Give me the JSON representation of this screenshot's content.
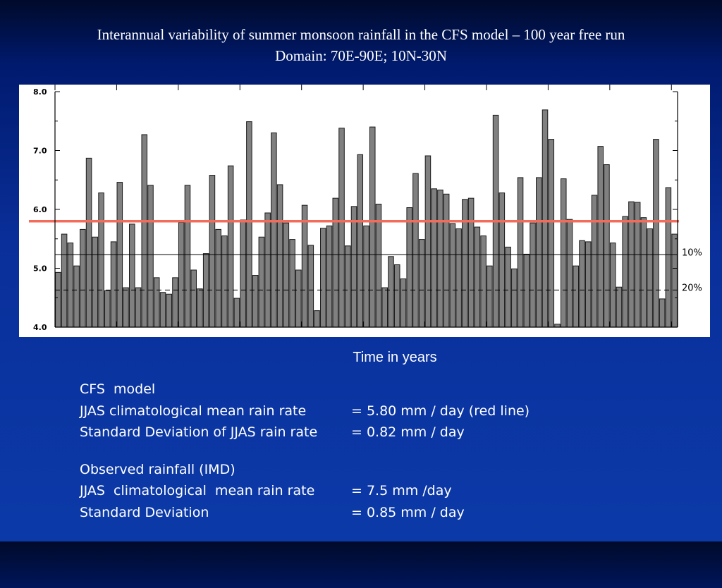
{
  "slide": {
    "title_line1": "Interannual variability of summer monsoon rainfall in the CFS model – 100 year free run",
    "title_line2": "Domain:  70E-90E;  10N-30N",
    "xlabel": "Time in years"
  },
  "notes": {
    "cfs_heading": "CFS  model",
    "cfs_mean_label": "JJAS climatological mean rain rate",
    "cfs_mean_value": "= 5.80 mm / day (red line)",
    "cfs_sd_label": "Standard Deviation of JJAS rain rate",
    "cfs_sd_value": "= 0.82 mm / day",
    "imd_heading": "Observed rainfall (IMD)",
    "imd_mean_label": "JJAS  climatological  mean rain rate",
    "imd_mean_value": "= 7.5 mm /day",
    "imd_sd_label": "Standard Deviation",
    "imd_sd_value": "= 0.85 mm / day"
  },
  "colors": {
    "bar_fill": "#808080",
    "bar_stroke": "#1a1a1a",
    "mean_line": "#f26b5b",
    "background_top": "#000a2a",
    "background_bottom": "#0b3aa8"
  },
  "chart_data": {
    "type": "bar",
    "ylim": [
      4.0,
      8.0
    ],
    "yticks": [
      "4.0",
      "5.0",
      "6.0",
      "7.0",
      "8.0"
    ],
    "mean_line": 5.8,
    "threshold_lines": [
      {
        "label": "10%",
        "value": 5.23,
        "style": "solid"
      },
      {
        "label": "20%",
        "value": 4.63,
        "style": "dashed"
      }
    ],
    "grid": false,
    "values": [
      4.93,
      5.58,
      5.43,
      5.04,
      5.66,
      6.87,
      5.53,
      6.28,
      4.62,
      5.45,
      6.46,
      4.67,
      5.75,
      4.67,
      7.27,
      6.41,
      4.84,
      4.59,
      4.56,
      4.84,
      5.78,
      6.41,
      4.97,
      4.65,
      5.25,
      6.58,
      5.66,
      5.55,
      6.74,
      4.49,
      5.82,
      7.49,
      4.88,
      5.53,
      5.94,
      7.3,
      6.42,
      5.77,
      5.49,
      4.97,
      6.07,
      5.39,
      4.28,
      5.68,
      5.72,
      6.19,
      7.38,
      5.38,
      6.05,
      6.93,
      5.72,
      7.4,
      6.09,
      4.67,
      5.2,
      5.06,
      4.82,
      6.03,
      6.61,
      5.49,
      6.91,
      6.35,
      6.33,
      6.26,
      5.76,
      5.67,
      6.17,
      6.19,
      5.7,
      5.55,
      5.04,
      7.6,
      6.28,
      5.36,
      4.99,
      6.54,
      5.24,
      5.77,
      6.54,
      7.69,
      7.19,
      4.05,
      6.52,
      5.83,
      5.04,
      5.47,
      5.45,
      6.24,
      7.07,
      6.76,
      5.43,
      4.68,
      5.88,
      6.13,
      6.12,
      5.86,
      5.67,
      7.19,
      4.48,
      6.37,
      5.58
    ]
  }
}
